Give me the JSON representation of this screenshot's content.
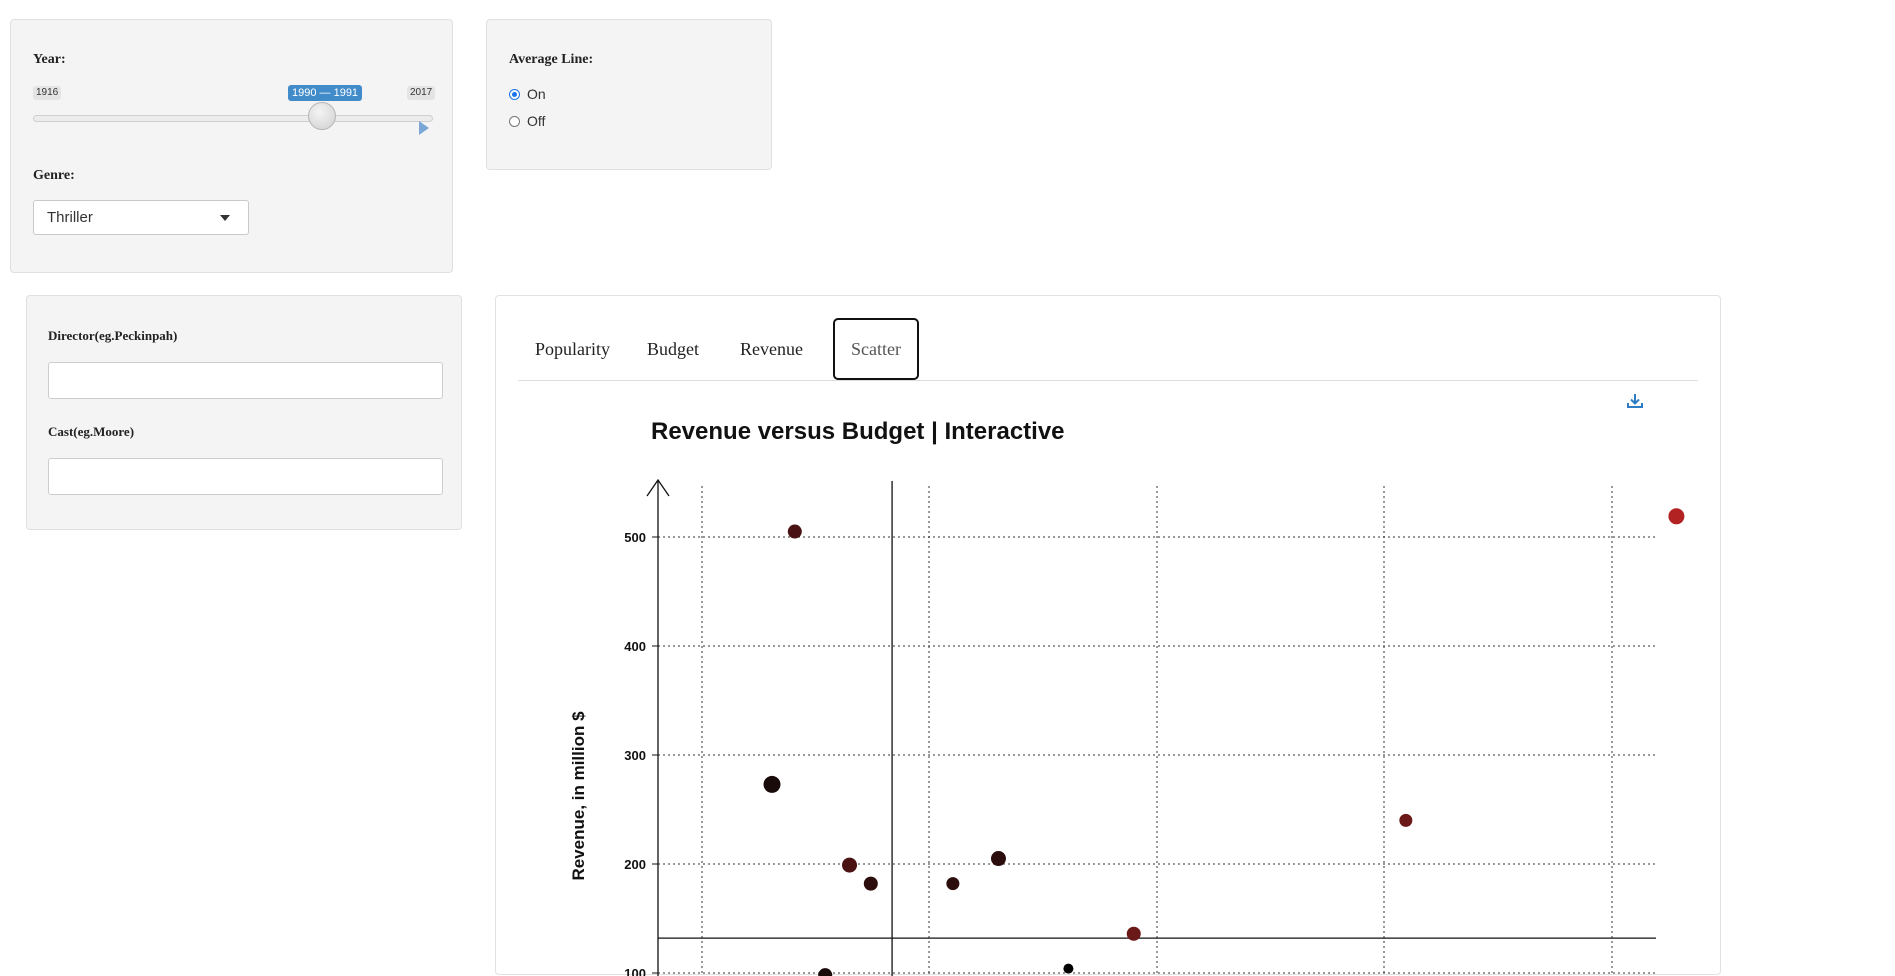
{
  "sidebar": {
    "year_label": "Year:",
    "slider_min": "1916",
    "slider_max": "2017",
    "slider_range": "1990 — 1991",
    "slider_value_fraction": 0.733,
    "genre_label": "Genre:",
    "genre_selected": "Thriller"
  },
  "average_line": {
    "label": "Average Line:",
    "options": [
      "On",
      "Off"
    ],
    "selected": "On"
  },
  "filters": {
    "director_label": "Director(eg.Peckinpah)",
    "director_value": "",
    "cast_label": "Cast(eg.Moore)",
    "cast_value": ""
  },
  "tabs": [
    "Popularity",
    "Budget",
    "Revenue",
    "Scatter"
  ],
  "active_tab": "Scatter",
  "colors": {
    "accent": "#428bca",
    "radio": "#1a73e8",
    "point_dark": "#1a0b0b",
    "point_red": "#b22222"
  },
  "icons": {
    "download": "download-icon"
  },
  "chart_data": {
    "type": "scatter",
    "title": "Revenue versus Budget | Interactive",
    "xlabel": "",
    "ylabel": "Revenue, in million $",
    "y_ticks": [
      100,
      200,
      300,
      400,
      500
    ],
    "grid": true,
    "average_lines": {
      "x": 15.4,
      "y": 132
    },
    "points": [
      {
        "x": 9,
        "y": 505,
        "color": "#4a1212"
      },
      {
        "x": 7.5,
        "y": 273,
        "color": "#1a0b0b"
      },
      {
        "x": 12.6,
        "y": 199,
        "color": "#4a1212"
      },
      {
        "x": 11,
        "y": 98,
        "color": "#1a0b0b"
      },
      {
        "x": 14,
        "y": 182,
        "color": "#2b0d0d"
      },
      {
        "x": 19.4,
        "y": 182,
        "color": "#2b0d0d"
      },
      {
        "x": 22.4,
        "y": 205,
        "color": "#2b0d0d"
      },
      {
        "x": 27,
        "y": 104,
        "color": "#000000"
      },
      {
        "x": 31.3,
        "y": 136,
        "color": "#6b1818"
      },
      {
        "x": 49.2,
        "y": 240,
        "color": "#6b1818"
      },
      {
        "x": 67,
        "y": 519,
        "color": "#b22222"
      }
    ]
  }
}
